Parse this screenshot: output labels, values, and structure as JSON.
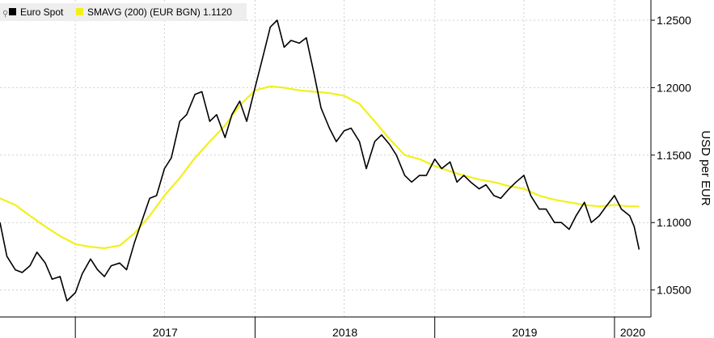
{
  "legend": {
    "spot_label": "Euro Spot",
    "sma_label": "SMAVG (200) (EUR BGN) 1.1120"
  },
  "colors": {
    "spot": "#000000",
    "sma": "#f2f01c",
    "grid": "#cfcfcf",
    "legend_bg": "#eeeeee"
  },
  "chart_data": {
    "type": "line",
    "ylabel": "USD per EUR",
    "ylim": [
      1.03,
      1.265
    ],
    "y_ticks": [
      "1.2500",
      "1.2000",
      "1.1500",
      "1.1000",
      "1.0500"
    ],
    "x_tick_labels": [
      "2017",
      "2018",
      "2019",
      "2020"
    ],
    "xlim": [
      "2016-08-01",
      "2020-03-15"
    ],
    "year_starts": [
      "2017-01-01",
      "2018-01-01",
      "2019-01-01",
      "2020-01-01"
    ],
    "series": [
      {
        "name": "Euro Spot",
        "color": "#000000",
        "points": [
          [
            "2016-08-01",
            1.1
          ],
          [
            "2016-08-15",
            1.075
          ],
          [
            "2016-09-01",
            1.065
          ],
          [
            "2016-09-15",
            1.063
          ],
          [
            "2016-10-01",
            1.068
          ],
          [
            "2016-10-15",
            1.078
          ],
          [
            "2016-11-01",
            1.07
          ],
          [
            "2016-11-15",
            1.058
          ],
          [
            "2016-12-01",
            1.06
          ],
          [
            "2016-12-15",
            1.042
          ],
          [
            "2017-01-01",
            1.048
          ],
          [
            "2017-01-15",
            1.062
          ],
          [
            "2017-02-01",
            1.073
          ],
          [
            "2017-02-15",
            1.065
          ],
          [
            "2017-03-01",
            1.06
          ],
          [
            "2017-03-15",
            1.068
          ],
          [
            "2017-04-01",
            1.07
          ],
          [
            "2017-04-15",
            1.065
          ],
          [
            "2017-05-01",
            1.085
          ],
          [
            "2017-05-15",
            1.1
          ],
          [
            "2017-06-01",
            1.118
          ],
          [
            "2017-06-15",
            1.12
          ],
          [
            "2017-07-01",
            1.14
          ],
          [
            "2017-07-15",
            1.148
          ],
          [
            "2017-08-01",
            1.175
          ],
          [
            "2017-08-15",
            1.18
          ],
          [
            "2017-09-01",
            1.195
          ],
          [
            "2017-09-15",
            1.197
          ],
          [
            "2017-10-01",
            1.175
          ],
          [
            "2017-10-15",
            1.18
          ],
          [
            "2017-11-01",
            1.163
          ],
          [
            "2017-11-15",
            1.18
          ],
          [
            "2017-12-01",
            1.19
          ],
          [
            "2017-12-15",
            1.175
          ],
          [
            "2018-01-01",
            1.2
          ],
          [
            "2018-01-15",
            1.22
          ],
          [
            "2018-02-01",
            1.245
          ],
          [
            "2018-02-15",
            1.25
          ],
          [
            "2018-03-01",
            1.23
          ],
          [
            "2018-03-15",
            1.235
          ],
          [
            "2018-04-01",
            1.233
          ],
          [
            "2018-04-15",
            1.237
          ],
          [
            "2018-05-01",
            1.21
          ],
          [
            "2018-05-15",
            1.185
          ],
          [
            "2018-06-01",
            1.17
          ],
          [
            "2018-06-15",
            1.16
          ],
          [
            "2018-07-01",
            1.168
          ],
          [
            "2018-07-15",
            1.17
          ],
          [
            "2018-08-01",
            1.16
          ],
          [
            "2018-08-15",
            1.14
          ],
          [
            "2018-09-01",
            1.16
          ],
          [
            "2018-09-15",
            1.165
          ],
          [
            "2018-10-01",
            1.158
          ],
          [
            "2018-10-15",
            1.15
          ],
          [
            "2018-11-01",
            1.135
          ],
          [
            "2018-11-15",
            1.13
          ],
          [
            "2018-12-01",
            1.135
          ],
          [
            "2018-12-15",
            1.135
          ],
          [
            "2019-01-01",
            1.147
          ],
          [
            "2019-01-15",
            1.14
          ],
          [
            "2019-02-01",
            1.145
          ],
          [
            "2019-02-15",
            1.13
          ],
          [
            "2019-03-01",
            1.135
          ],
          [
            "2019-03-15",
            1.13
          ],
          [
            "2019-04-01",
            1.125
          ],
          [
            "2019-04-15",
            1.128
          ],
          [
            "2019-05-01",
            1.12
          ],
          [
            "2019-05-15",
            1.118
          ],
          [
            "2019-06-01",
            1.125
          ],
          [
            "2019-06-15",
            1.13
          ],
          [
            "2019-07-01",
            1.135
          ],
          [
            "2019-07-15",
            1.12
          ],
          [
            "2019-08-01",
            1.11
          ],
          [
            "2019-08-15",
            1.11
          ],
          [
            "2019-09-01",
            1.1
          ],
          [
            "2019-09-15",
            1.1
          ],
          [
            "2019-10-01",
            1.095
          ],
          [
            "2019-10-15",
            1.105
          ],
          [
            "2019-11-01",
            1.115
          ],
          [
            "2019-11-15",
            1.1
          ],
          [
            "2019-12-01",
            1.105
          ],
          [
            "2019-12-15",
            1.112
          ],
          [
            "2020-01-01",
            1.12
          ],
          [
            "2020-01-15",
            1.11
          ],
          [
            "2020-02-01",
            1.105
          ],
          [
            "2020-02-10",
            1.097
          ],
          [
            "2020-02-20",
            1.08
          ]
        ]
      },
      {
        "name": "SMAVG (200) (EUR BGN) 1.1120",
        "color": "#f2f01c",
        "points": [
          [
            "2016-08-01",
            1.118
          ],
          [
            "2016-09-01",
            1.113
          ],
          [
            "2016-10-01",
            1.105
          ],
          [
            "2016-11-01",
            1.097
          ],
          [
            "2016-12-01",
            1.09
          ],
          [
            "2017-01-01",
            1.084
          ],
          [
            "2017-02-01",
            1.082
          ],
          [
            "2017-03-01",
            1.081
          ],
          [
            "2017-04-01",
            1.083
          ],
          [
            "2017-05-01",
            1.092
          ],
          [
            "2017-06-01",
            1.105
          ],
          [
            "2017-07-01",
            1.12
          ],
          [
            "2017-08-01",
            1.133
          ],
          [
            "2017-09-01",
            1.148
          ],
          [
            "2017-10-01",
            1.16
          ],
          [
            "2017-11-01",
            1.172
          ],
          [
            "2017-12-01",
            1.187
          ],
          [
            "2018-01-01",
            1.198
          ],
          [
            "2018-02-01",
            1.201
          ],
          [
            "2018-03-01",
            1.2
          ],
          [
            "2018-04-01",
            1.198
          ],
          [
            "2018-05-01",
            1.197
          ],
          [
            "2018-06-01",
            1.196
          ],
          [
            "2018-07-01",
            1.194
          ],
          [
            "2018-08-01",
            1.188
          ],
          [
            "2018-09-01",
            1.175
          ],
          [
            "2018-10-01",
            1.162
          ],
          [
            "2018-11-01",
            1.15
          ],
          [
            "2018-12-01",
            1.147
          ],
          [
            "2019-01-01",
            1.142
          ],
          [
            "2019-02-01",
            1.138
          ],
          [
            "2019-03-01",
            1.135
          ],
          [
            "2019-04-01",
            1.132
          ],
          [
            "2019-05-01",
            1.13
          ],
          [
            "2019-06-01",
            1.127
          ],
          [
            "2019-07-01",
            1.125
          ],
          [
            "2019-08-01",
            1.12
          ],
          [
            "2019-09-01",
            1.117
          ],
          [
            "2019-10-01",
            1.115
          ],
          [
            "2019-11-01",
            1.113
          ],
          [
            "2019-12-01",
            1.112
          ],
          [
            "2020-01-01",
            1.113
          ],
          [
            "2020-02-01",
            1.112
          ],
          [
            "2020-02-20",
            1.112
          ]
        ]
      }
    ]
  }
}
